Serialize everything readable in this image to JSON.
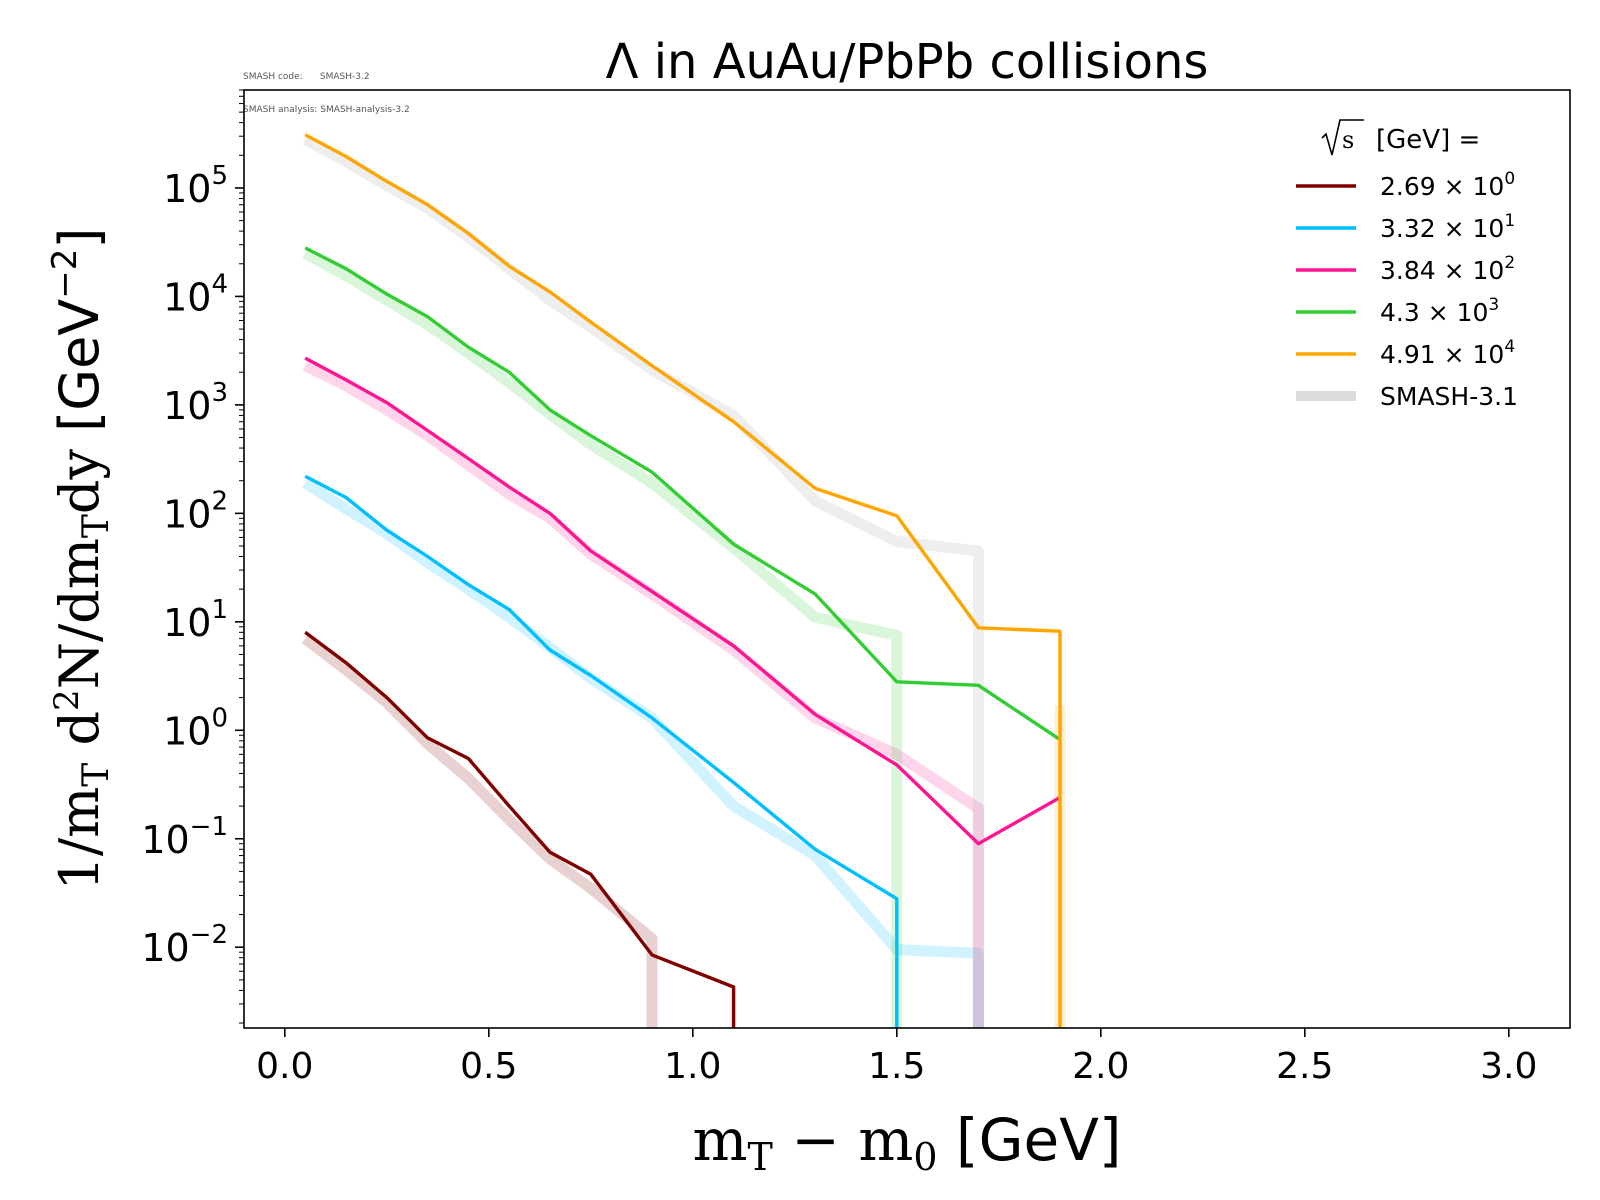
{
  "meta": {
    "code_line": "SMASH code:      SMASH-3.2",
    "analysis_line": "SMASH analysis: SMASH-analysis-3.2"
  },
  "chart_data": {
    "type": "line",
    "title": "Λ in AuAu/PbPb collisions",
    "xlabel": "m_T − m_0 [GeV]",
    "ylabel": "1/m_T d²N/dm_T dy [GeV⁻²]",
    "xlim": [
      -0.1,
      3.15
    ],
    "ylim": [
      0.0018,
      800000
    ],
    "yscale": "log",
    "x_ticks": [
      "0.0",
      "0.5",
      "1.0",
      "1.5",
      "2.0",
      "2.5",
      "3.0"
    ],
    "y_ticks": [
      {
        "base": "10",
        "exp": "−2"
      },
      {
        "base": "10",
        "exp": "−1"
      },
      {
        "base": "10",
        "exp": "0"
      },
      {
        "base": "10",
        "exp": "1"
      },
      {
        "base": "10",
        "exp": "2"
      },
      {
        "base": "10",
        "exp": "3"
      },
      {
        "base": "10",
        "exp": "4"
      },
      {
        "base": "10",
        "exp": "5"
      }
    ],
    "grid": false,
    "legend": {
      "position": "top-right",
      "title": "[GeV] =",
      "entries": [
        {
          "mant": "2.69 × 10",
          "exp": "0",
          "color": "#800000"
        },
        {
          "mant": "3.32 × 10",
          "exp": "1",
          "color": "#00bfff"
        },
        {
          "mant": "3.84 × 10",
          "exp": "2",
          "color": "#ff1493"
        },
        {
          "mant": "4.3 × 10",
          "exp": "3",
          "color": "#32cd32"
        },
        {
          "mant": "4.91 × 10",
          "exp": "4",
          "color": "#ffa500"
        },
        {
          "mant": "SMASH-3.1",
          "exp": "",
          "color": "#cccccc"
        }
      ]
    },
    "series": [
      {
        "name": "2.69 × 10^0",
        "color": "#800000",
        "x": [
          0.05,
          0.15,
          0.25,
          0.35,
          0.45,
          0.55,
          0.65,
          0.75,
          0.9,
          1.1,
          1.1
        ],
        "y": [
          8,
          4.2,
          2.0,
          0.85,
          0.55,
          0.2,
          0.075,
          0.047,
          0.0085,
          0.0043,
          0.0018
        ]
      },
      {
        "name": "3.32 × 10^1",
        "color": "#00bfff",
        "x": [
          0.05,
          0.15,
          0.25,
          0.35,
          0.45,
          0.55,
          0.65,
          0.75,
          0.9,
          1.1,
          1.3,
          1.5,
          1.5
        ],
        "y": [
          220,
          140,
          70,
          40,
          22,
          13,
          5.5,
          3.2,
          1.3,
          0.33,
          0.08,
          0.028,
          0.0018
        ]
      },
      {
        "name": "3.84 × 10^2",
        "color": "#ff1493",
        "x": [
          0.05,
          0.15,
          0.25,
          0.35,
          0.45,
          0.55,
          0.65,
          0.75,
          0.9,
          1.1,
          1.3,
          1.5,
          1.7,
          1.9
        ],
        "y": [
          2700,
          1700,
          1050,
          580,
          320,
          175,
          100,
          45,
          19,
          6,
          1.4,
          0.48,
          0.09,
          0.24
        ]
      },
      {
        "name": "4.3 × 10^3",
        "color": "#32cd32",
        "x": [
          0.05,
          0.15,
          0.25,
          0.35,
          0.45,
          0.55,
          0.65,
          0.75,
          0.9,
          1.1,
          1.3,
          1.5,
          1.7,
          1.9
        ],
        "y": [
          28000,
          18000,
          10500,
          6500,
          3400,
          2000,
          900,
          520,
          240,
          52,
          18,
          2.8,
          2.6,
          0.82
        ]
      },
      {
        "name": "4.91 × 10^4",
        "color": "#ffa500",
        "x": [
          0.05,
          0.15,
          0.25,
          0.35,
          0.45,
          0.55,
          0.65,
          0.75,
          0.9,
          1.1,
          1.3,
          1.5,
          1.7,
          1.9,
          1.9
        ],
        "y": [
          310000,
          195000,
          115000,
          70000,
          38000,
          19000,
          11000,
          5800,
          2300,
          700,
          170,
          95,
          8.8,
          8.2,
          0.0018
        ]
      }
    ],
    "reference_series": [
      {
        "name": "SMASH-3.1",
        "color": "#800000",
        "x": [
          0.05,
          0.15,
          0.25,
          0.35,
          0.45,
          0.55,
          0.65,
          0.75,
          0.9,
          0.9
        ],
        "y": [
          7,
          3.6,
          1.8,
          0.75,
          0.36,
          0.15,
          0.065,
          0.035,
          0.012,
          0.0018
        ]
      },
      {
        "name": "SMASH-3.1",
        "color": "#00bfff",
        "x": [
          0.05,
          0.15,
          0.25,
          0.35,
          0.45,
          0.55,
          0.65,
          0.75,
          0.9,
          1.1,
          1.3,
          1.5,
          1.7,
          1.7
        ],
        "y": [
          190,
          110,
          65,
          35,
          20,
          11,
          5.8,
          3.0,
          1.3,
          0.2,
          0.07,
          0.0095,
          0.0088,
          0.0018
        ]
      },
      {
        "name": "SMASH-3.1",
        "color": "#ff1493",
        "x": [
          0.05,
          0.15,
          0.25,
          0.35,
          0.45,
          0.55,
          0.65,
          0.75,
          0.9,
          1.1,
          1.3,
          1.5,
          1.7,
          1.7
        ],
        "y": [
          2300,
          1500,
          900,
          520,
          280,
          150,
          90,
          42,
          18,
          5.5,
          1.3,
          0.6,
          0.19,
          0.0018
        ]
      },
      {
        "name": "SMASH-3.1",
        "color": "#32cd32",
        "x": [
          0.05,
          0.15,
          0.25,
          0.35,
          0.45,
          0.55,
          0.65,
          0.75,
          0.9,
          1.1,
          1.3,
          1.5,
          1.5
        ],
        "y": [
          25000,
          15500,
          9200,
          5500,
          3000,
          1600,
          820,
          430,
          190,
          48,
          11,
          7.5,
          0.0018
        ]
      },
      {
        "name": "SMASH-3.1",
        "color": "#a0a0a0",
        "x": [
          0.05,
          0.15,
          0.25,
          0.35,
          0.45,
          0.55,
          0.65,
          0.75,
          0.9,
          1.1,
          1.3,
          1.5,
          1.7,
          1.7
        ],
        "y": [
          280000,
          175000,
          105000,
          65000,
          35000,
          18000,
          9200,
          5200,
          2100,
          800,
          130,
          55,
          45,
          0.0018
        ]
      },
      {
        "name": "SMASH-3.1",
        "color": "#ffa500",
        "x": [
          1.9,
          1.9
        ],
        "y": [
          1.7,
          0.0018
        ]
      }
    ]
  }
}
